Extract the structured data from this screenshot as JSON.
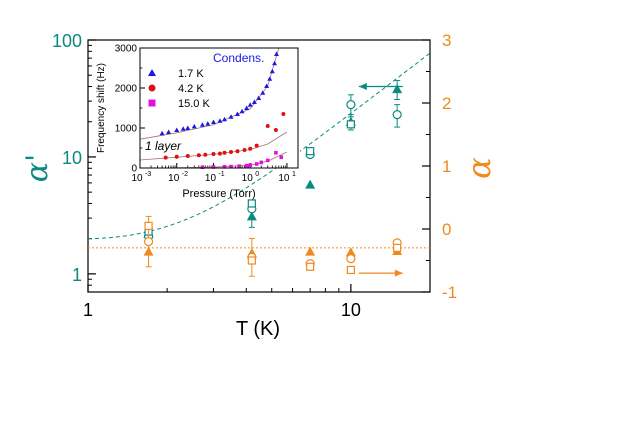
{
  "colors": {
    "teal": "#0b8a80",
    "orange": "#f08a1e",
    "blue": "#1a1ae6",
    "red": "#e01010",
    "magenta": "#e010e0",
    "fit_inset": "#b07070"
  },
  "chart_data": [
    {
      "type": "scatter",
      "xlabel": "T (K)",
      "ylabel_left": "α'",
      "ylabel_right": "α",
      "xscale": "log",
      "yscale_left": "log",
      "xlim": [
        1,
        20
      ],
      "ylim_left": [
        0.7,
        100
      ],
      "ylim_right": [
        -1,
        3
      ],
      "x_ticks": [
        "1",
        "10"
      ],
      "y_ticks_left": [
        "1",
        "10",
        "100"
      ],
      "y_ticks_right": [
        "-1",
        "0",
        "1",
        "2",
        "3"
      ],
      "series": [
        {
          "axis": "left",
          "marker": "filled-triangle",
          "color": "#0b8a80",
          "points": [
            {
              "x": 1.7,
              "y": 2.2
            },
            {
              "x": 4.2,
              "y": 3.1,
              "err": 0.6
            },
            {
              "x": 7.0,
              "y": 5.8
            },
            {
              "x": 10.0,
              "y": 20,
              "err": 3
            },
            {
              "x": 15.0,
              "y": 38,
              "err": 7
            }
          ]
        },
        {
          "axis": "left",
          "marker": "open-circle",
          "color": "#0b8a80",
          "points": [
            {
              "x": 1.7,
              "y": 2.1
            },
            {
              "x": 4.2,
              "y": 3.6
            },
            {
              "x": 7.0,
              "y": 10.5
            },
            {
              "x": 10.0,
              "y": 28,
              "err": 6
            },
            {
              "x": 15.0,
              "y": 23,
              "err": 5
            }
          ]
        },
        {
          "axis": "left",
          "marker": "open-square",
          "color": "#0b8a80",
          "points": [
            {
              "x": 1.7,
              "y": 2.3
            },
            {
              "x": 4.2,
              "y": 4.0
            },
            {
              "x": 7.0,
              "y": 11.2
            },
            {
              "x": 10.0,
              "y": 19
            }
          ]
        },
        {
          "axis": "right",
          "marker": "filled-triangle",
          "color": "#f08a1e",
          "points": [
            {
              "x": 1.7,
              "y": -0.36
            },
            {
              "x": 4.2,
              "y": -0.38
            },
            {
              "x": 7.0,
              "y": -0.36
            },
            {
              "x": 10.0,
              "y": -0.37
            },
            {
              "x": 15.0,
              "y": -0.35
            }
          ]
        },
        {
          "axis": "right",
          "marker": "open-circle",
          "color": "#f08a1e",
          "points": [
            {
              "x": 1.7,
              "y": -0.2,
              "err": 0.4
            },
            {
              "x": 4.2,
              "y": -0.45,
              "err": 0.3
            },
            {
              "x": 7.0,
              "y": -0.55
            },
            {
              "x": 10.0,
              "y": -0.47
            },
            {
              "x": 15.0,
              "y": -0.22
            }
          ]
        },
        {
          "axis": "right",
          "marker": "open-square",
          "color": "#f08a1e",
          "points": [
            {
              "x": 1.7,
              "y": 0.05
            },
            {
              "x": 4.2,
              "y": -0.5
            },
            {
              "x": 7.0,
              "y": -0.6
            },
            {
              "x": 10.0,
              "y": -0.65
            },
            {
              "x": 15.0,
              "y": -0.3
            }
          ]
        }
      ],
      "fits": [
        {
          "axis": "left",
          "style": "dashed",
          "color": "#0b8a80",
          "y0": 2.0,
          "a": 0.55,
          "p": 1.67
        },
        {
          "axis": "right",
          "style": "dotted",
          "color": "#f08a1e",
          "y": -0.3
        }
      ],
      "annotations": [
        {
          "text": "arrow-left",
          "points_to": "left-axis",
          "at": {
            "x": 13,
            "y": 40
          }
        },
        {
          "text": "arrow-right",
          "points_to": "right-axis",
          "at": {
            "x": 13,
            "y": -0.7
          }
        }
      ]
    },
    {
      "type": "scatter",
      "inset": true,
      "xlabel": "Pressure (Torr)",
      "ylabel": "Frequency shift (Hz)",
      "xscale": "log",
      "xlim": [
        0.001,
        20
      ],
      "ylim": [
        0,
        3000
      ],
      "x_tick_exponents": [
        "-3",
        "-2",
        "-1",
        "0",
        "1"
      ],
      "y_ticks": [
        "0",
        "1000",
        "2000",
        "3000"
      ],
      "legend_placement": "top-left",
      "annotation_text": "Condens.",
      "layer_label": "1 layer",
      "series": [
        {
          "name": "1.7 K",
          "color": "#1a1ae6",
          "marker": "triangle",
          "points": [
            [
              0.004,
              870
            ],
            [
              0.006,
              900
            ],
            [
              0.01,
              950
            ],
            [
              0.015,
              980
            ],
            [
              0.02,
              1000
            ],
            [
              0.03,
              1040
            ],
            [
              0.05,
              1080
            ],
            [
              0.07,
              1110
            ],
            [
              0.1,
              1150
            ],
            [
              0.15,
              1180
            ],
            [
              0.2,
              1220
            ],
            [
              0.3,
              1280
            ],
            [
              0.45,
              1350
            ],
            [
              0.6,
              1420
            ],
            [
              0.8,
              1500
            ],
            [
              1.0,
              1580
            ],
            [
              1.3,
              1650
            ],
            [
              1.7,
              1750
            ],
            [
              2.2,
              1880
            ],
            [
              2.8,
              2050
            ],
            [
              3.4,
              2230
            ],
            [
              4.0,
              2420
            ],
            [
              4.6,
              2620
            ],
            [
              5.2,
              2850
            ]
          ],
          "fit": [
            [
              0.001,
              720
            ],
            [
              0.01,
              880
            ],
            [
              0.1,
              1080
            ],
            [
              1.0,
              1480
            ],
            [
              3.0,
              2050
            ],
            [
              6.0,
              3000
            ]
          ]
        },
        {
          "name": "4.2 K",
          "color": "#e01010",
          "marker": "circle",
          "points": [
            [
              0.005,
              260
            ],
            [
              0.01,
              280
            ],
            [
              0.02,
              300
            ],
            [
              0.04,
              320
            ],
            [
              0.06,
              330
            ],
            [
              0.1,
              350
            ],
            [
              0.15,
              360
            ],
            [
              0.2,
              380
            ],
            [
              0.3,
              400
            ],
            [
              0.45,
              420
            ],
            [
              0.7,
              450
            ],
            [
              1.0,
              480
            ],
            [
              1.5,
              560
            ],
            [
              3.0,
              1050
            ],
            [
              5.0,
              950
            ],
            [
              8.0,
              1350
            ]
          ],
          "fit": [
            [
              0.001,
              200
            ],
            [
              0.01,
              270
            ],
            [
              0.1,
              340
            ],
            [
              1.0,
              460
            ],
            [
              3.0,
              600
            ],
            [
              10.0,
              900
            ]
          ]
        },
        {
          "name": "15.0 K",
          "color": "#e010e0",
          "marker": "square",
          "points": [
            [
              0.05,
              20
            ],
            [
              0.1,
              25
            ],
            [
              0.2,
              30
            ],
            [
              0.3,
              35
            ],
            [
              0.5,
              45
            ],
            [
              0.8,
              60
            ],
            [
              1.0,
              70
            ],
            [
              1.5,
              100
            ],
            [
              2.0,
              140
            ],
            [
              3.0,
              190
            ],
            [
              5.0,
              380
            ],
            [
              7.0,
              270
            ]
          ],
          "fit": [
            [
              0.01,
              5
            ],
            [
              0.1,
              20
            ],
            [
              1.0,
              70
            ],
            [
              3.0,
              170
            ],
            [
              10.0,
              400
            ]
          ]
        }
      ]
    }
  ]
}
